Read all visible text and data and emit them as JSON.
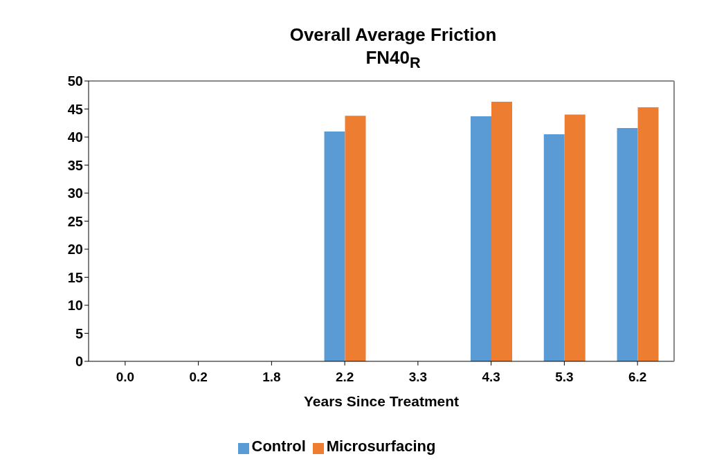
{
  "chart_data": {
    "type": "bar",
    "title": "Overall Average Friction",
    "subtitle": "FN40$_{R}$",
    "xlabel": "Years Since Treatment",
    "categories": [
      "0.0",
      "0.2",
      "1.8",
      "2.2",
      "3.3",
      "4.3",
      "5.3",
      "6.2"
    ],
    "series": [
      {
        "name": "Control",
        "color": "#5b9bd5",
        "values": [
          null,
          null,
          null,
          41.0,
          null,
          43.7,
          40.5,
          41.6
        ]
      },
      {
        "name": "Microsurfacing",
        "color": "#ed7d31",
        "values": [
          null,
          null,
          null,
          43.8,
          null,
          46.3,
          44.0,
          45.3
        ]
      }
    ],
    "ylim": [
      0,
      50
    ],
    "yticks": [
      0,
      5,
      10,
      15,
      20,
      25,
      30,
      35,
      40,
      45,
      50
    ],
    "grid": false,
    "legend": "bottom"
  }
}
